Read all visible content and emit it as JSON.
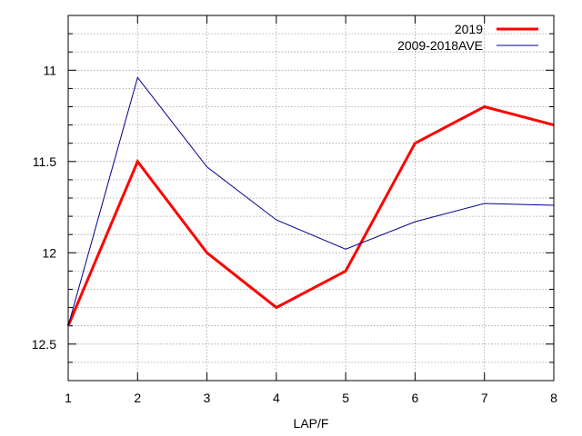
{
  "chart_data": {
    "type": "line",
    "xlabel": "LAP/F",
    "ylabel": "",
    "x": [
      1,
      2,
      3,
      4,
      5,
      6,
      7,
      8
    ],
    "xlim": [
      1,
      8
    ],
    "ylim": [
      10.7,
      12.7
    ],
    "y_inverted": true,
    "x_ticks": [
      "1",
      "2",
      "3",
      "4",
      "5",
      "6",
      "7",
      "8"
    ],
    "y_ticks": [
      11,
      11.5,
      12,
      12.5
    ],
    "y_tick_labels": [
      "11",
      "11.5",
      "12",
      "12.5"
    ],
    "y_minor_step": 0.1,
    "grid": true,
    "legend_position": "top-right",
    "series": [
      {
        "name": "2019",
        "color": "#ff0000",
        "width": 3,
        "values": [
          12.4,
          11.5,
          12.0,
          12.3,
          12.1,
          11.4,
          11.2,
          11.3
        ]
      },
      {
        "name": "2009-2018AVE",
        "color": "#00008b",
        "width": 1,
        "values": [
          12.4,
          11.04,
          11.53,
          11.82,
          11.98,
          11.83,
          11.73,
          11.74
        ]
      }
    ]
  }
}
